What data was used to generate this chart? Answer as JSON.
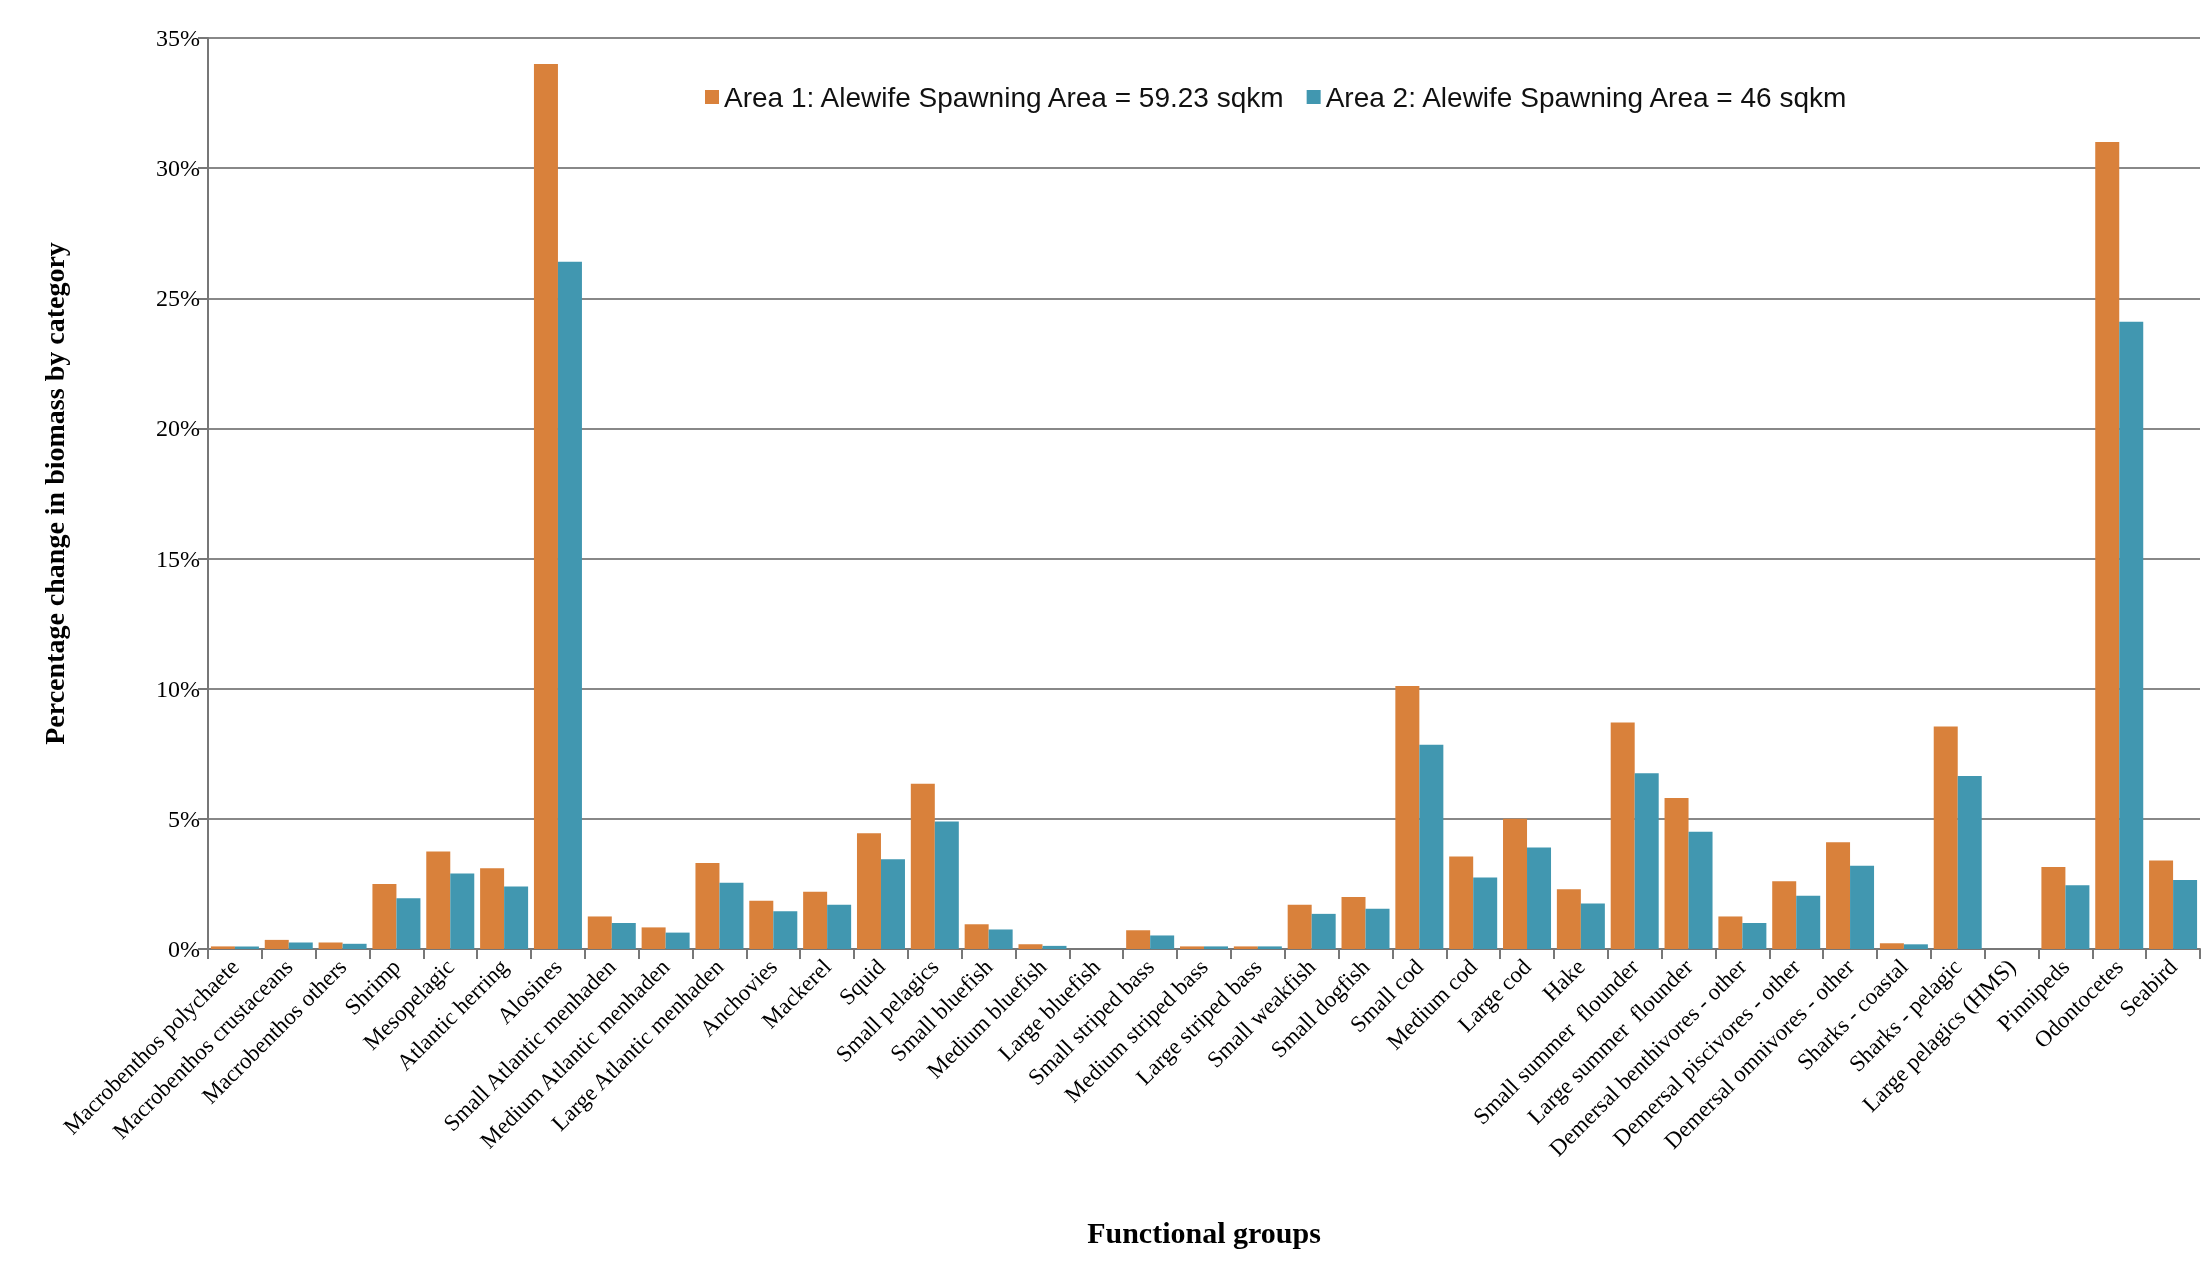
{
  "chart_data": {
    "type": "bar",
    "xlabel": "Functional groups",
    "ylabel": "Percentage change in biomass by category",
    "categories": [
      "Macrobenthos polychaete",
      "Macrobenthos crustaceans",
      "Macrobenthos others",
      "Shrimp",
      "Mesopelagic",
      "Atlantic herring",
      "Alosines",
      "Small Atlantic menhaden",
      "Medium Atlantic menhaden",
      "Large Atlantic menhaden",
      "Anchovies",
      "Mackerel",
      "Squid",
      "Small pelagics",
      "Small bluefish",
      "Medium bluefish",
      "Large bluefish",
      "Small striped bass",
      "Medium striped bass",
      "Large striped bass",
      "Small weakfish",
      "Small dogfish",
      "Small cod",
      "Medium cod",
      "Large cod",
      "Hake",
      "Small summer  flounder",
      "Large summer  flounder",
      "Demersal benthivores - other",
      "Demersal piscivores - other",
      "Demersal omnivores - other",
      "Sharks - coastal",
      "Sharks - pelagic",
      "Large pelagics (HMS)",
      "Pinnipeds",
      "Odontocetes",
      "Seabird"
    ],
    "series": [
      {
        "name": "Area 1: Alewife Spawning Area = 59.23 sqkm",
        "color": "#d9813b",
        "values": [
          0.1,
          0.35,
          0.25,
          2.5,
          3.75,
          3.1,
          34,
          1.25,
          0.83,
          3.3,
          1.85,
          2.2,
          4.45,
          6.35,
          0.95,
          0.18,
          0,
          0.72,
          0.1,
          0.1,
          1.7,
          2.0,
          10.1,
          3.55,
          5.0,
          2.3,
          8.7,
          5.8,
          1.25,
          2.6,
          4.1,
          0.22,
          8.55,
          0,
          3.15,
          31,
          3.4
        ]
      },
      {
        "name": "Area 2: Alewife Spawning Area = 46 sqkm",
        "color": "#4197b0",
        "values": [
          0.1,
          0.25,
          0.2,
          1.95,
          2.9,
          2.4,
          26.4,
          1.0,
          0.63,
          2.55,
          1.45,
          1.7,
          3.45,
          4.9,
          0.75,
          0.12,
          0,
          0.52,
          0.1,
          0.1,
          1.35,
          1.55,
          7.85,
          2.75,
          3.9,
          1.75,
          6.75,
          4.5,
          1.0,
          2.05,
          3.2,
          0.18,
          6.65,
          0,
          2.45,
          24.1,
          2.65
        ]
      }
    ],
    "ylim": [
      0,
      35
    ],
    "yticks": [
      {
        "value": 0,
        "label": "0%"
      },
      {
        "value": 5,
        "label": "5%"
      },
      {
        "value": 10,
        "label": "10%"
      },
      {
        "value": 15,
        "label": "15%"
      },
      {
        "value": 20,
        "label": "20%"
      },
      {
        "value": 25,
        "label": "25%"
      },
      {
        "value": 30,
        "label": "30%"
      },
      {
        "value": 35,
        "label": "35%"
      }
    ],
    "grid": "y",
    "legend": "top"
  }
}
